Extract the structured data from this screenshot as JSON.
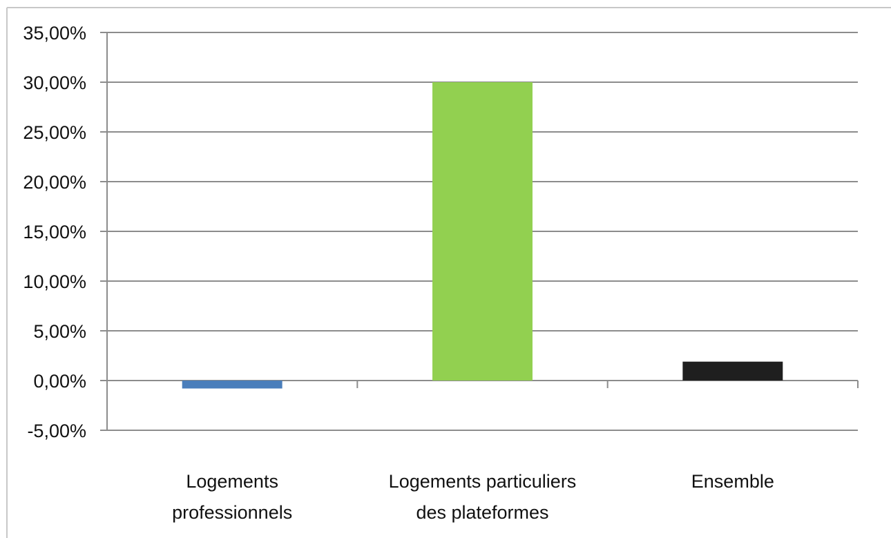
{
  "chart_data": {
    "type": "bar",
    "title": "",
    "xlabel": "",
    "ylabel": "",
    "categories": [
      [
        "Logements",
        "professionnels"
      ],
      [
        "Logements particuliers",
        "des plateformes"
      ],
      [
        "Ensemble"
      ]
    ],
    "values": [
      -0.8,
      30.0,
      1.9
    ],
    "colors": [
      "#4a7ebb",
      "#92d050",
      "#1f1f1f"
    ],
    "ylim": [
      -5,
      35
    ],
    "yticks": [
      35,
      30,
      25,
      20,
      15,
      10,
      5,
      0,
      -5
    ],
    "ytick_labels": [
      "35,00%",
      "30,00%",
      "25,00%",
      "20,00%",
      "15,00%",
      "10,00%",
      "5,00%",
      "0,00%",
      "-5,00%"
    ],
    "grid": true,
    "legend": "none"
  }
}
